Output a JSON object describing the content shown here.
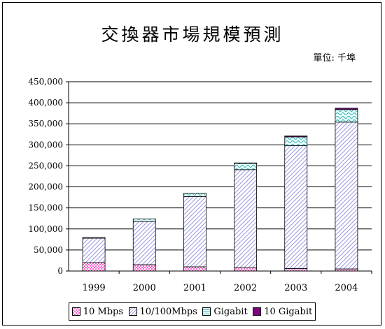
{
  "chart_data": {
    "type": "bar",
    "stacked": true,
    "title": "交換器市場規模預測",
    "unit_label": "單位: 千埠",
    "categories": [
      "1999",
      "2000",
      "2001",
      "2002",
      "2003",
      "2004"
    ],
    "series": [
      {
        "name": "10 Mbps",
        "values": [
          20000,
          15000,
          10000,
          8000,
          6000,
          5000
        ],
        "color": "#ff66cc",
        "pattern": "check"
      },
      {
        "name": "10/100Mbps",
        "values": [
          58000,
          103000,
          167000,
          233000,
          292000,
          349000
        ],
        "color": "#ccccff",
        "pattern": "diagonal"
      },
      {
        "name": "Gigabit",
        "values": [
          2000,
          6000,
          8000,
          15000,
          21000,
          30000
        ],
        "color": "#ccffff",
        "pattern": "wave"
      },
      {
        "name": "10 Gigabit",
        "values": [
          0,
          0,
          0,
          1000,
          2000,
          3000
        ],
        "color": "#800080",
        "pattern": "solid"
      }
    ],
    "ylim": [
      0,
      450000
    ],
    "yticks": [
      0,
      50000,
      100000,
      150000,
      200000,
      250000,
      300000,
      350000,
      400000,
      450000
    ],
    "ytick_labels": [
      "0",
      "50,000",
      "100,000",
      "150,000",
      "200,000",
      "250,000",
      "300,000",
      "350,000",
      "400,000",
      "450,000"
    ],
    "grid": true,
    "legend_position": "bottom"
  }
}
